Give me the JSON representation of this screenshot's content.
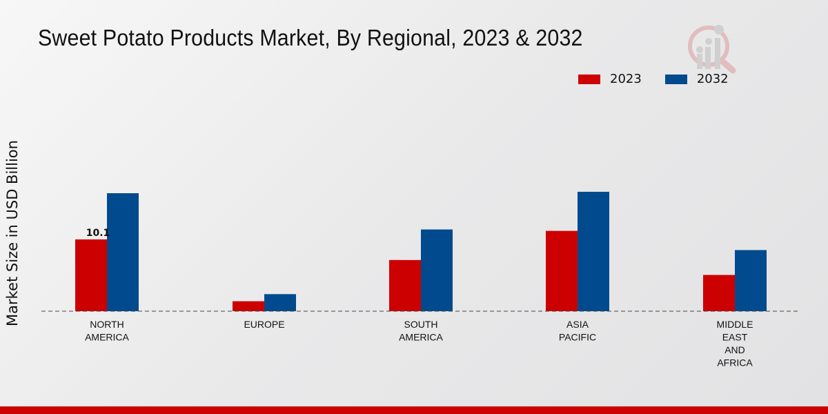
{
  "chart_data": {
    "type": "bar",
    "title": "Sweet Potato Products Market, By Regional, 2023 & 2032",
    "xlabel": "",
    "ylabel": "Market Size in USD Billion",
    "ylim": [
      0,
      20
    ],
    "grid": false,
    "legend_position": "top-right",
    "categories": [
      [
        "NORTH",
        "AMERICA"
      ],
      [
        "EUROPE"
      ],
      [
        "SOUTH",
        "AMERICA"
      ],
      [
        "ASIA",
        "PACIFIC"
      ],
      [
        "MIDDLE",
        "EAST",
        "AND",
        "AFRICA"
      ]
    ],
    "series": [
      {
        "name": "2023",
        "color": "#cc0000",
        "values": [
          10.1,
          1.4,
          7.2,
          11.3,
          5.1
        ]
      },
      {
        "name": "2032",
        "color": "#004a8d",
        "values": [
          16.6,
          2.4,
          11.5,
          16.8,
          8.6
        ]
      }
    ],
    "annotations": [
      {
        "series": 0,
        "index": 0,
        "text": "10.1"
      }
    ]
  }
}
